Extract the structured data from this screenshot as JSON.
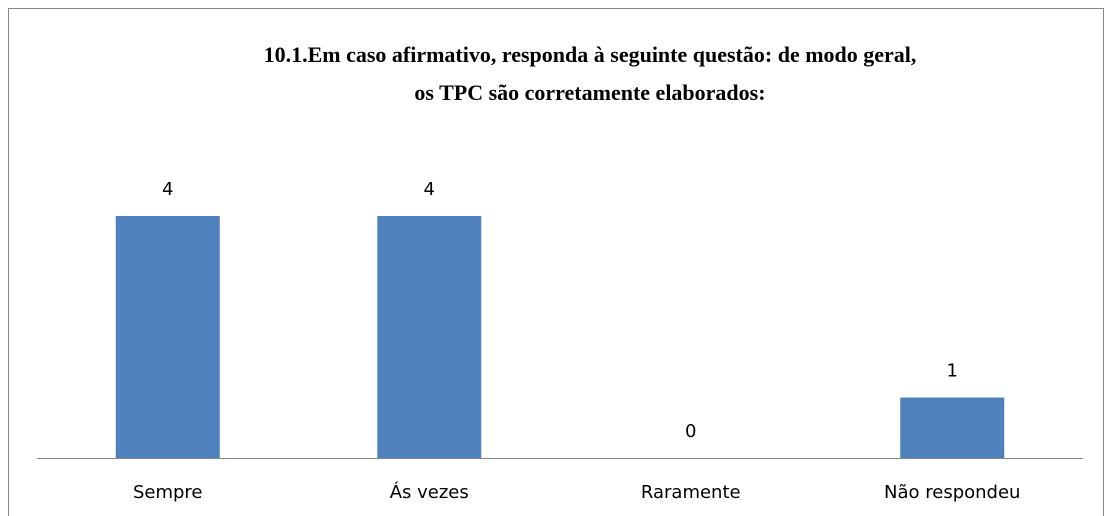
{
  "chart_data": {
    "type": "bar",
    "title": [
      "10.1.Em caso afirmativo, responda à seguinte questão: de modo geral,",
      "os TPC são corretamente elaborados:"
    ],
    "categories": [
      "Sempre",
      "Ás vezes",
      "Raramente",
      "Não respondeu"
    ],
    "values": [
      4,
      4,
      0,
      1
    ],
    "color": "#4f81bd",
    "ylim": [
      0,
      4
    ]
  }
}
